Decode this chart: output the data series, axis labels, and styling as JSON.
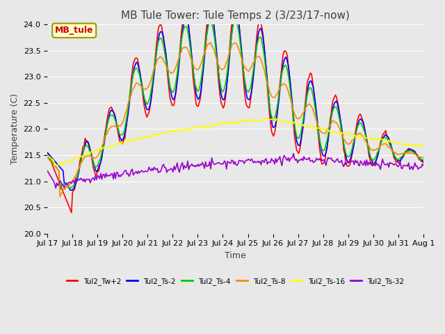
{
  "title": "MB Tule Tower: Tule Temps 2 (3/23/17-now)",
  "xlabel": "Time",
  "ylabel": "Temperature (C)",
  "ylim": [
    20.0,
    24.0
  ],
  "yticks": [
    20.0,
    20.5,
    21.0,
    21.5,
    22.0,
    22.5,
    23.0,
    23.5,
    24.0
  ],
  "xtick_labels": [
    "Jul 17",
    "Jul 18",
    "Jul 19",
    "Jul 20",
    "Jul 21",
    "Jul 22",
    "Jul 23",
    "Jul 24",
    "Jul 25",
    "Jul 26",
    "Jul 27",
    "Jul 28",
    "Jul 29",
    "Jul 30",
    "Jul 31",
    "Aug 1"
  ],
  "n_points": 360,
  "legend_labels": [
    "Tul2_Tw+2",
    "Tul2_Ts-2",
    "Tul2_Ts-4",
    "Tul2_Ts-8",
    "Tul2_Ts-16",
    "Tul2_Ts-32"
  ],
  "legend_colors": [
    "#ff0000",
    "#0000ff",
    "#00cc00",
    "#ff8800",
    "#ffff00",
    "#9900cc"
  ],
  "line_widths": [
    1.2,
    1.2,
    1.2,
    1.2,
    1.2,
    1.2
  ],
  "bg_color": "#e8e8e8",
  "plot_bg_color": "#e8e8e8",
  "annotation_text": "MB_tule",
  "annotation_color": "#cc0000",
  "annotation_bg": "#ffffcc",
  "title_fontsize": 11,
  "label_fontsize": 9,
  "tick_fontsize": 8
}
